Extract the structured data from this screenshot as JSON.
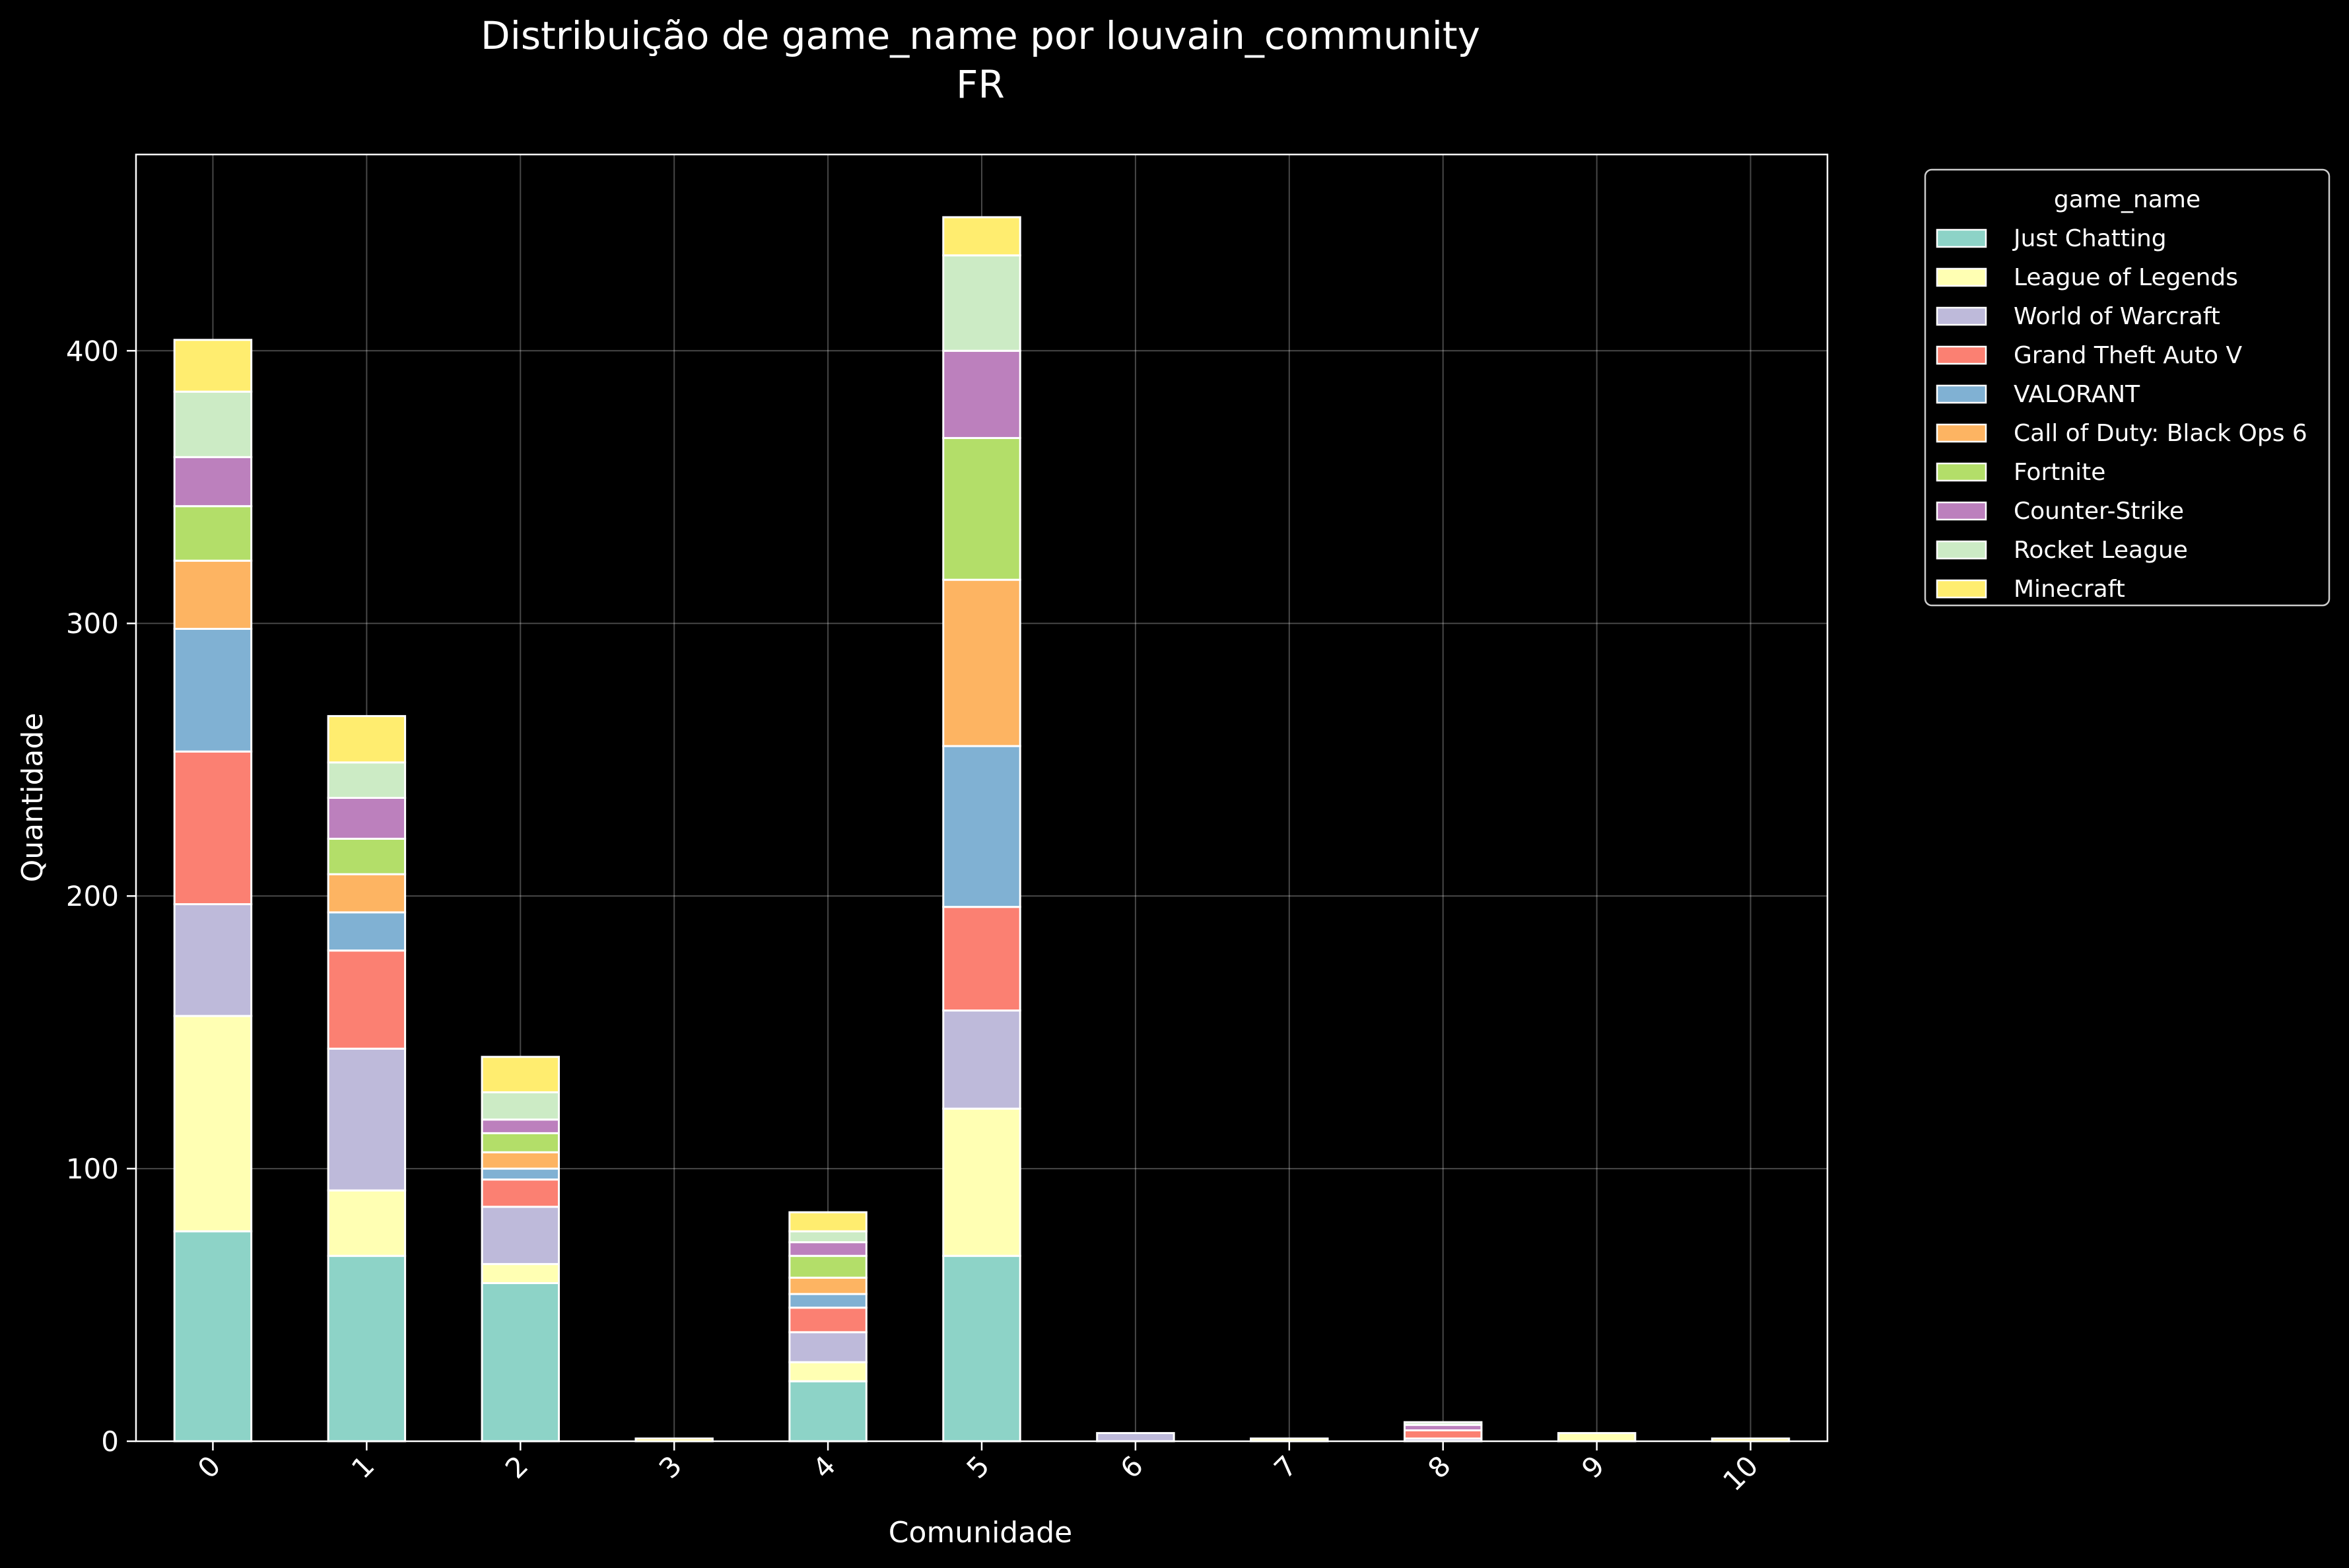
{
  "chart_data": {
    "type": "bar",
    "stacked": true,
    "title": "Distribuição de game_name por louvain_community",
    "subtitle": "FR",
    "xlabel": "Comunidade",
    "ylabel": "Quantidade",
    "categories": [
      "0",
      "1",
      "2",
      "3",
      "4",
      "5",
      "6",
      "7",
      "8",
      "9",
      "10"
    ],
    "ylim": [
      0,
      472
    ],
    "yticks": [
      0,
      100,
      200,
      300,
      400
    ],
    "grid": true,
    "legend": {
      "title": "game_name",
      "placement": "outside-top-right"
    },
    "series": [
      {
        "name": "Just Chatting",
        "color": "#8dd3c7",
        "values": [
          77,
          68,
          58,
          0,
          22,
          68,
          0,
          0,
          0,
          0,
          0
        ]
      },
      {
        "name": "League of Legends",
        "color": "#ffffb3",
        "values": [
          79,
          24,
          7,
          0,
          7,
          54,
          0,
          1,
          0,
          3,
          0
        ]
      },
      {
        "name": "World of Warcraft",
        "color": "#bebada",
        "values": [
          41,
          52,
          21,
          0,
          11,
          36,
          3,
          0,
          1,
          0,
          0
        ]
      },
      {
        "name": "Grand Theft Auto V",
        "color": "#fb8072",
        "values": [
          56,
          36,
          10,
          0,
          9,
          38,
          0,
          0,
          3,
          0,
          0
        ]
      },
      {
        "name": "VALORANT",
        "color": "#80b1d3",
        "values": [
          45,
          14,
          4,
          0,
          5,
          59,
          0,
          0,
          0,
          0,
          0
        ]
      },
      {
        "name": "Call of Duty: Black Ops 6",
        "color": "#fdb462",
        "values": [
          25,
          14,
          6,
          0,
          6,
          61,
          0,
          0,
          0,
          0,
          0
        ]
      },
      {
        "name": "Fortnite",
        "color": "#b3de69",
        "values": [
          20,
          13,
          7,
          0,
          8,
          52,
          0,
          0,
          0,
          0,
          0
        ]
      },
      {
        "name": "Counter-Strike",
        "color": "#bc80bd",
        "values": [
          18,
          15,
          5,
          0,
          5,
          32,
          0,
          0,
          2,
          0,
          0
        ]
      },
      {
        "name": "Rocket League",
        "color": "#ccebc5",
        "values": [
          24,
          13,
          10,
          0,
          4,
          35,
          0,
          0,
          1,
          0,
          0
        ]
      },
      {
        "name": "Minecraft",
        "color": "#ffed6f",
        "values": [
          19,
          17,
          13,
          1,
          7,
          14,
          0,
          0,
          0,
          0,
          1
        ]
      }
    ]
  }
}
